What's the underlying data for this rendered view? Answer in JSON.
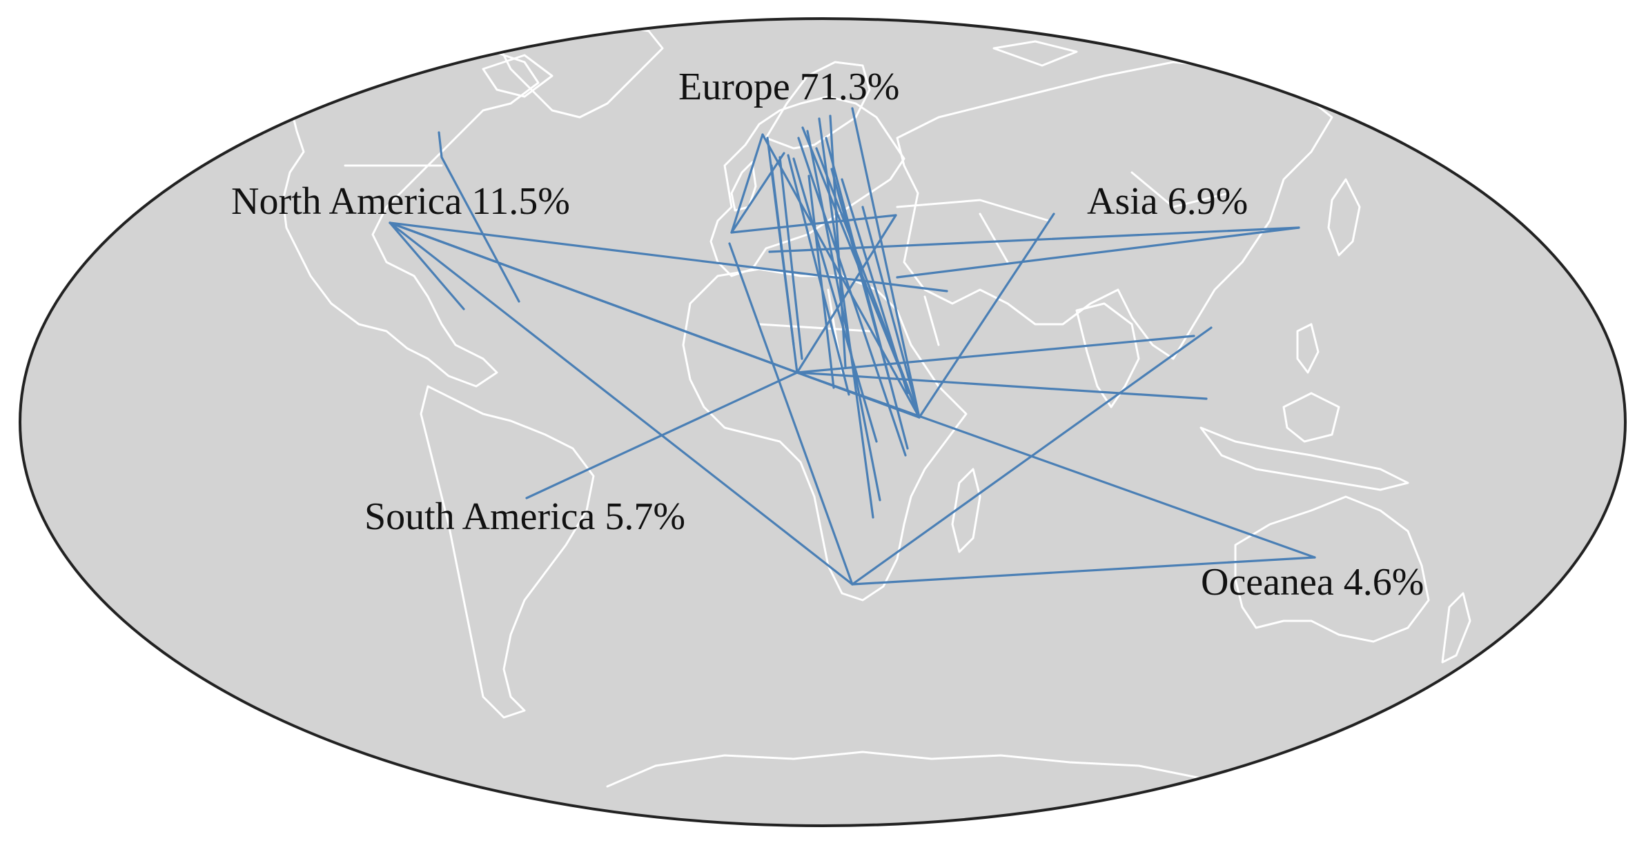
{
  "map": {
    "projection": "mollweide",
    "colors": {
      "ocean_land_fill": "#d3d3d3",
      "coastline": "#ffffff",
      "outline": "#222222",
      "route": "#4a7fb5",
      "label": "#111111"
    },
    "labels": [
      {
        "id": "europe",
        "text": "Europe 71.3%"
      },
      {
        "id": "north-america",
        "text": "North America 11.5%"
      },
      {
        "id": "asia",
        "text": "Asia 6.9%"
      },
      {
        "id": "south-america",
        "text": "South America 5.7%"
      },
      {
        "id": "oceanea",
        "text": "Oceanea 4.6%"
      }
    ]
  }
}
